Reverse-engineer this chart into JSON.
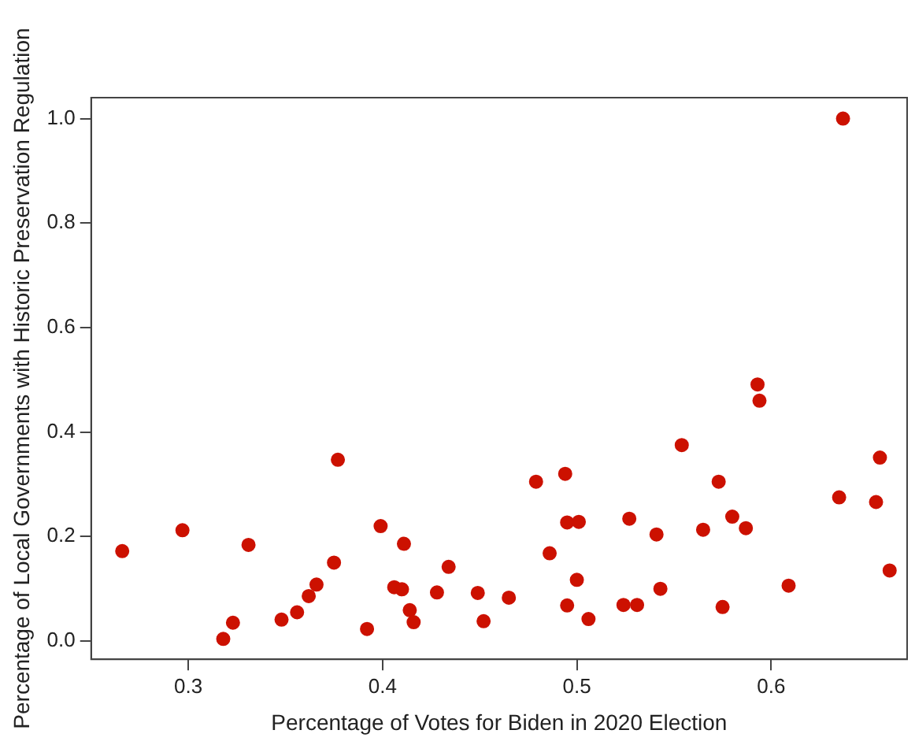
{
  "chart_data": {
    "type": "scatter",
    "xlabel": "Percentage of Votes for Biden in 2020 Election",
    "ylabel": "Percentage of Local Governments with Historic Preservation Regulation",
    "marker": "circle",
    "grid": false,
    "legend": false,
    "xlim": [
      0.25,
      0.67
    ],
    "xticks": [
      0.3,
      0.4,
      0.5,
      0.6
    ],
    "ylim": [
      -0.035,
      1.04
    ],
    "yticks": [
      {
        "value": 0,
        "label": "0.0"
      },
      0.2,
      0.4,
      0.6,
      0.8,
      {
        "value": 1,
        "label": "1.0"
      }
    ],
    "series": [
      {
        "color": "#cc1100",
        "x": [
          0.266,
          0.297,
          0.318,
          0.323,
          0.331,
          0.348,
          0.356,
          0.362,
          0.366,
          0.375,
          0.377,
          0.392,
          0.399,
          0.406,
          0.41,
          0.411,
          0.414,
          0.416,
          0.428,
          0.434,
          0.449,
          0.452,
          0.465,
          0.479,
          0.486,
          0.494,
          0.495,
          0.495,
          0.5,
          0.501,
          0.506,
          0.524,
          0.527,
          0.531,
          0.541,
          0.543,
          0.554,
          0.565,
          0.573,
          0.575,
          0.58,
          0.587,
          0.593,
          0.594,
          0.609,
          0.635,
          0.637,
          0.654,
          0.656,
          0.661
        ],
        "values": [
          0.172,
          0.212,
          0.004,
          0.035,
          0.184,
          0.041,
          0.055,
          0.086,
          0.108,
          0.15,
          0.347,
          0.023,
          0.22,
          0.103,
          0.099,
          0.186,
          0.059,
          0.036,
          0.093,
          0.142,
          0.092,
          0.038,
          0.083,
          0.305,
          0.168,
          0.32,
          0.227,
          0.068,
          0.117,
          0.228,
          0.042,
          0.069,
          0.234,
          0.069,
          0.204,
          0.1,
          0.375,
          0.213,
          0.305,
          0.065,
          0.238,
          0.216,
          0.491,
          0.46,
          0.106,
          0.275,
          1.0,
          0.266,
          0.351,
          0.135
        ]
      }
    ]
  }
}
